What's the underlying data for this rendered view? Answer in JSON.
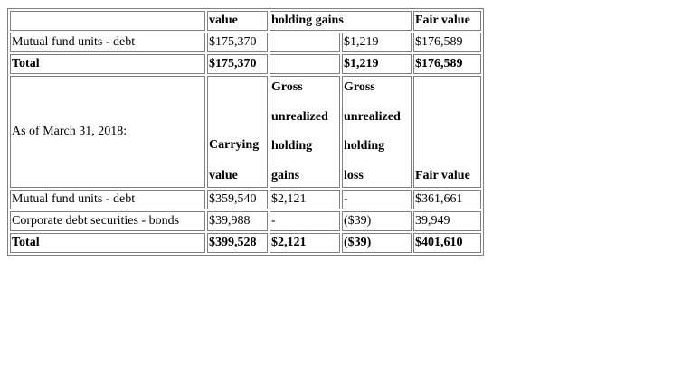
{
  "section1": {
    "headers": {
      "carrying_value": "value",
      "unrealized_gains": "holding gains",
      "fair_value": "Fair value"
    },
    "rows": [
      {
        "label": "Mutual fund units - debt",
        "carrying_value": "$175,370",
        "gains": "",
        "loss": "$1,219",
        "fair_value": "$176,589"
      },
      {
        "label": "Total",
        "carrying_value": "$175,370",
        "gains": "",
        "loss": "$1,219",
        "fair_value": "$176,589"
      }
    ]
  },
  "section2": {
    "period_label": "As of March 31, 2018:",
    "headers": {
      "carrying_value": [
        "Carrying",
        "value"
      ],
      "gains": [
        "Gross",
        "unrealized",
        "holding",
        "gains"
      ],
      "loss": [
        "Gross",
        "unrealized",
        "holding",
        "loss"
      ],
      "fair_value": "Fair value"
    },
    "rows": [
      {
        "label": "Mutual fund units - debt",
        "carrying_value": "$359,540",
        "gains": "$2,121",
        "loss": "-",
        "fair_value": "$361,661"
      },
      {
        "label": "Corporate debt securities - bonds",
        "carrying_value": "$39,988",
        "gains": "-",
        "loss": "($39)",
        "fair_value": "39,949"
      },
      {
        "label": "Total",
        "carrying_value": "$399,528",
        "gains": "$2,121",
        "loss": "($39)",
        "fair_value": "$401,610"
      }
    ]
  }
}
